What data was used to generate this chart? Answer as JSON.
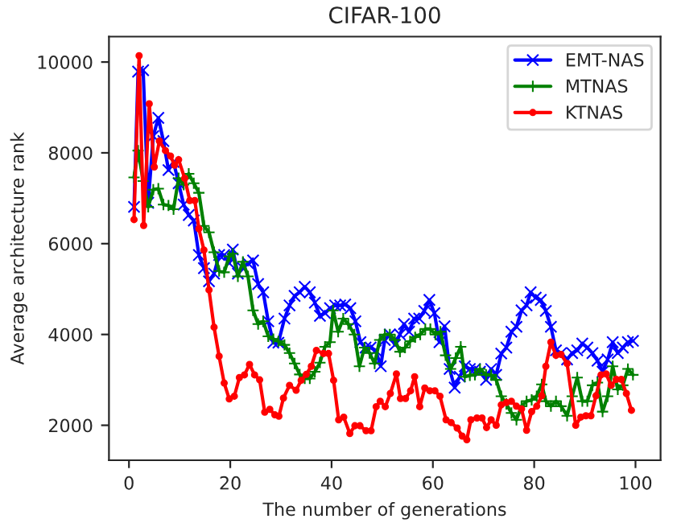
{
  "chart_data": {
    "type": "line",
    "title": "CIFAR-100",
    "xlabel": "The number of generations",
    "ylabel": "Average architecture rank",
    "xlim": [
      -3.95,
      104.95
    ],
    "ylim": [
      1230,
      10560
    ],
    "xticks": [
      0,
      20,
      40,
      60,
      80,
      100
    ],
    "yticks": [
      2000,
      4000,
      6000,
      8000,
      10000
    ],
    "grid": false,
    "legend": "top right",
    "line_style": "solid",
    "series": [
      {
        "name": "EMT-NAS",
        "color": "#0000ff",
        "marker": "cross",
        "x": [
          1,
          1.8,
          2.8,
          3.8,
          4.8,
          5.8,
          6.8,
          7.8,
          8.8,
          9.8,
          10.8,
          11.8,
          12.8,
          13.8,
          14.8,
          15.8,
          16.8,
          17.8,
          18.8,
          19.8,
          20.5,
          21.5,
          22.5,
          23.5,
          24.5,
          25.5,
          26.5,
          27.5,
          28.5,
          29.5,
          30.7,
          31.7,
          32.7,
          33.7,
          34.7,
          35.7,
          36.7,
          37.7,
          38.7,
          39.7,
          40.7,
          41.7,
          42.7,
          43.7,
          44.7,
          45.7,
          46.7,
          47.7,
          48.7,
          49.7,
          50.5,
          51.5,
          52.5,
          53.5,
          54.3,
          55.3,
          56.3,
          57.3,
          58.3,
          59.3,
          60.3,
          61.3,
          62.3,
          63.3,
          64.3,
          65.3,
          66.3,
          67.3,
          68.3,
          69.3,
          70.5,
          71.5,
          72.5,
          73.5,
          74.5,
          75.5,
          76.5,
          77.5,
          78.5,
          79.3,
          80.3,
          81.3,
          82.3,
          83.3,
          84.3,
          85.3,
          86.5,
          87.5,
          88.5,
          89.5,
          90.5,
          91.5,
          92.5,
          93.5,
          94.5,
          95.5,
          96.5,
          97.5,
          98.5,
          99.5
        ],
        "values": [
          6810,
          9790,
          9820,
          6900,
          8370,
          8770,
          8260,
          7620,
          7800,
          7330,
          6860,
          6630,
          6510,
          5750,
          5460,
          5170,
          5340,
          5750,
          5750,
          5570,
          5870,
          5340,
          5460,
          5570,
          5630,
          5110,
          4930,
          4290,
          3820,
          3820,
          4350,
          4640,
          4850,
          4930,
          5050,
          4930,
          4700,
          4410,
          4470,
          4580,
          4640,
          4640,
          4660,
          4580,
          4290,
          3830,
          3710,
          3710,
          3650,
          3300,
          3880,
          4000,
          3770,
          4000,
          4230,
          4060,
          4350,
          4350,
          4520,
          4760,
          4470,
          3830,
          4180,
          3240,
          2830,
          3070,
          3300,
          3240,
          3240,
          3180,
          3000,
          3240,
          3110,
          3580,
          3710,
          4060,
          4170,
          4530,
          4640,
          4930,
          4810,
          4760,
          4520,
          4170,
          3650,
          3590,
          3450,
          3590,
          3650,
          3800,
          3710,
          3590,
          3420,
          3180,
          3450,
          3830,
          3590,
          3710,
          3830,
          3860
        ]
      },
      {
        "name": "MTNAS",
        "color": "#008000",
        "marker": "plus",
        "x": [
          1,
          1.8,
          2.8,
          3.8,
          4.8,
          5.8,
          6.8,
          7.8,
          8.8,
          9.8,
          10.8,
          11.8,
          12.8,
          13.8,
          14.8,
          15.8,
          16.8,
          17.8,
          18.8,
          19.8,
          20.5,
          21.5,
          22.5,
          23.5,
          24.5,
          25.5,
          26.5,
          27.5,
          28.5,
          29.5,
          30.7,
          31.7,
          32.7,
          33.7,
          34.7,
          35.7,
          36.7,
          37.7,
          38.7,
          39.7,
          40.3,
          41.3,
          42.3,
          43.3,
          44.5,
          45.5,
          46.5,
          47.5,
          48.5,
          49.5,
          50.5,
          51.5,
          52.5,
          53.5,
          54.5,
          55.5,
          56.5,
          57.5,
          58.5,
          59.5,
          60.5,
          61.5,
          62.5,
          63.5,
          64.5,
          65.5,
          66.3,
          67.3,
          68.3,
          69.3,
          70.5,
          71.5,
          72.5,
          73.5,
          74.5,
          75.5,
          76.5,
          77.5,
          78.5,
          79.5,
          80.5,
          81.5,
          82.3,
          83.3,
          84.3,
          85.3,
          86.5,
          87.5,
          88.5,
          89.5,
          90.5,
          91.5,
          92.5,
          93.5,
          94.5,
          95.5,
          96.5,
          97.5,
          98.5,
          99.5
        ],
        "values": [
          7460,
          8050,
          7380,
          6810,
          7190,
          7210,
          6860,
          6840,
          6760,
          7440,
          7300,
          7540,
          7330,
          7120,
          6390,
          6250,
          5810,
          5400,
          5370,
          5720,
          5780,
          5280,
          5600,
          5280,
          4530,
          4230,
          4290,
          3960,
          3900,
          3850,
          3770,
          3590,
          3360,
          3120,
          3030,
          3030,
          3180,
          3380,
          3730,
          3830,
          4530,
          4060,
          4350,
          4230,
          4000,
          3300,
          3710,
          3590,
          3360,
          3880,
          4000,
          4000,
          3880,
          3620,
          3710,
          3850,
          3940,
          4000,
          4120,
          4120,
          4000,
          4060,
          3540,
          3240,
          3480,
          3730,
          3070,
          3100,
          3110,
          3240,
          3110,
          3110,
          3000,
          2640,
          2470,
          2270,
          2120,
          2420,
          2530,
          2560,
          2640,
          2900,
          2530,
          2420,
          2530,
          2420,
          2210,
          2640,
          3050,
          2530,
          2530,
          2880,
          2940,
          2300,
          2640,
          3300,
          2790,
          2880,
          3240,
          3110
        ]
      },
      {
        "name": "KTNAS",
        "color": "#ff0000",
        "marker": "circle",
        "x": [
          1,
          2,
          2.9,
          4,
          5,
          6,
          7.2,
          8.2,
          9,
          9.8,
          11,
          12,
          13,
          13.8,
          14.8,
          15.8,
          16.8,
          17.8,
          18.8,
          19.8,
          20.8,
          21.8,
          22.8,
          23.8,
          24.8,
          25.8,
          26.8,
          27.8,
          28.8,
          29.6,
          30.5,
          31.7,
          33,
          34,
          35,
          36,
          37,
          38.4,
          39.4,
          40.4,
          41.4,
          42.4,
          43.6,
          44.6,
          45.6,
          46.8,
          47.8,
          48.8,
          49.6,
          50.6,
          51.6,
          52.8,
          53.6,
          54.6,
          55.6,
          56.4,
          57.4,
          58.4,
          59.4,
          60.4,
          61.4,
          62.6,
          63.6,
          64.8,
          65.8,
          66.7,
          67.5,
          68.7,
          69.7,
          70.6,
          71.5,
          72.5,
          73.5,
          74.5,
          75.5,
          76.5,
          77.5,
          78.5,
          79.5,
          80.5,
          81.5,
          82.3,
          83.3,
          84.3,
          85.3,
          86.5,
          88.2,
          89.2,
          90.2,
          91.2,
          92.2,
          93.2,
          94.2,
          95.2,
          96.2,
          97.2,
          98.2,
          99.2
        ],
        "values": [
          6530,
          10140,
          6400,
          9080,
          7690,
          8260,
          8050,
          7930,
          7730,
          7850,
          7440,
          6950,
          6950,
          6330,
          5860,
          4980,
          4160,
          3520,
          2930,
          2580,
          2640,
          3050,
          3110,
          3340,
          3110,
          3000,
          2290,
          2350,
          2230,
          2200,
          2600,
          2880,
          2770,
          2990,
          3120,
          3300,
          3650,
          3580,
          3580,
          2990,
          2120,
          2180,
          1820,
          1990,
          1990,
          1880,
          1880,
          2410,
          2530,
          2410,
          2700,
          3130,
          2590,
          2590,
          2760,
          3070,
          2410,
          2820,
          2760,
          2760,
          2640,
          2120,
          2060,
          1940,
          1760,
          1680,
          2120,
          2160,
          2160,
          1950,
          2120,
          2000,
          2450,
          2500,
          2530,
          2420,
          2360,
          1890,
          2300,
          2420,
          2650,
          3300,
          3830,
          3540,
          3560,
          3360,
          2000,
          2180,
          2210,
          2210,
          2650,
          3110,
          3130,
          2880,
          3010,
          3010,
          2700,
          2330
        ]
      }
    ]
  }
}
